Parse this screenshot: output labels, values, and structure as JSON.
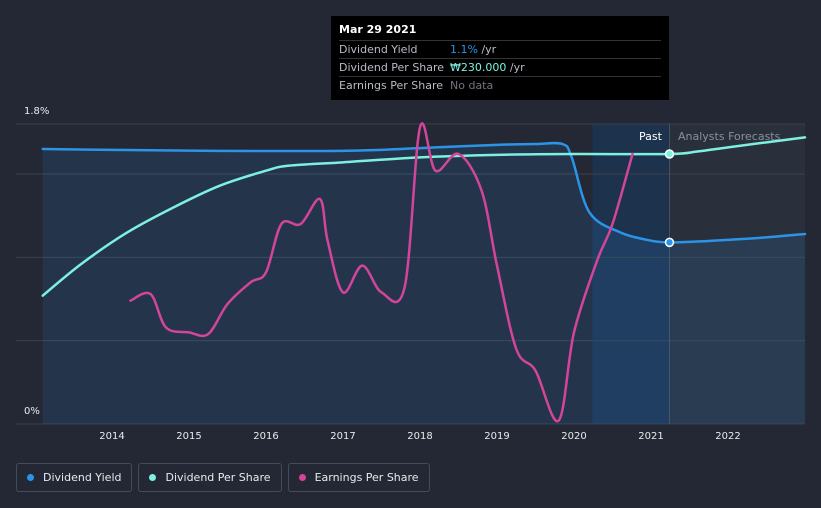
{
  "tooltip": {
    "date": "Mar 29 2021",
    "rows": [
      {
        "label": "Dividend Yield",
        "value": "1.1%",
        "suffix": " /yr"
      },
      {
        "label": "Dividend Per Share",
        "value": "₩230.000",
        "suffix": " /yr"
      },
      {
        "label": "Earnings Per Share",
        "value": "No data",
        "suffix": ""
      }
    ]
  },
  "regions": {
    "past": "Past",
    "forecast": "Analysts Forecasts"
  },
  "legend": [
    {
      "label": "Dividend Yield",
      "color": "#2b94e6"
    },
    {
      "label": "Dividend Per Share",
      "color": "#7df0e0"
    },
    {
      "label": "Earnings Per Share",
      "color": "#d3459a"
    }
  ],
  "chart_data": {
    "type": "line",
    "yticks": [
      "1.8%",
      "0%"
    ],
    "ylim": [
      0,
      1.8
    ],
    "xlim": [
      2013.1,
      2023.0
    ],
    "x_ticks": [
      "2014",
      "2015",
      "2016",
      "2017",
      "2018",
      "2019",
      "2020",
      "2021",
      "2022"
    ],
    "forecast_start": 2021.24,
    "past_band_start": 2020.24,
    "series": [
      {
        "name": "Dividend Yield",
        "color": "#2b94e6",
        "area": true,
        "x": [
          2013.1,
          2014.0,
          2015.0,
          2016.0,
          2016.8,
          2017.5,
          2018.2,
          2019.0,
          2019.5,
          2019.85,
          2019.97,
          2020.2,
          2020.6,
          2021.0,
          2021.24,
          2021.6,
          2022.0,
          2022.5,
          2023.0
        ],
        "y": [
          1.65,
          1.645,
          1.64,
          1.638,
          1.638,
          1.645,
          1.66,
          1.675,
          1.68,
          1.68,
          1.6,
          1.27,
          1.15,
          1.1,
          1.09,
          1.095,
          1.105,
          1.12,
          1.14
        ]
      },
      {
        "name": "Dividend Per Share",
        "color": "#7df0e0",
        "area": false,
        "x": [
          2013.1,
          2013.6,
          2014.2,
          2014.8,
          2015.4,
          2016.0,
          2016.3,
          2017.0,
          2018.0,
          2019.0,
          2020.0,
          2021.24,
          2021.6,
          2022.0,
          2022.5,
          2023.0
        ],
        "y": [
          0.77,
          0.96,
          1.15,
          1.3,
          1.43,
          1.52,
          1.55,
          1.57,
          1.6,
          1.615,
          1.62,
          1.62,
          1.635,
          1.66,
          1.69,
          1.72
        ]
      },
      {
        "name": "Earnings Per Share",
        "color": "#d3459a",
        "area": false,
        "x": [
          2014.24,
          2014.5,
          2014.7,
          2015.0,
          2015.25,
          2015.5,
          2015.8,
          2016.0,
          2016.2,
          2016.45,
          2016.7,
          2016.8,
          2017.0,
          2017.25,
          2017.5,
          2017.8,
          2018.0,
          2018.2,
          2018.5,
          2018.8,
          2019.0,
          2019.25,
          2019.5,
          2019.8,
          2020.0,
          2020.3,
          2020.5,
          2020.76
        ],
        "y": [
          0.74,
          0.78,
          0.58,
          0.55,
          0.54,
          0.72,
          0.85,
          0.91,
          1.2,
          1.2,
          1.35,
          1.1,
          0.79,
          0.95,
          0.79,
          0.82,
          1.78,
          1.52,
          1.62,
          1.4,
          0.95,
          0.45,
          0.32,
          0.02,
          0.55,
          0.98,
          1.2,
          1.62
        ]
      }
    ],
    "markers": [
      {
        "series": "Dividend Yield",
        "x": 2021.24,
        "y": 1.09
      },
      {
        "series": "Dividend Per Share",
        "x": 2021.24,
        "y": 1.62
      }
    ],
    "grid": true,
    "legend_position": "bottom-left"
  }
}
